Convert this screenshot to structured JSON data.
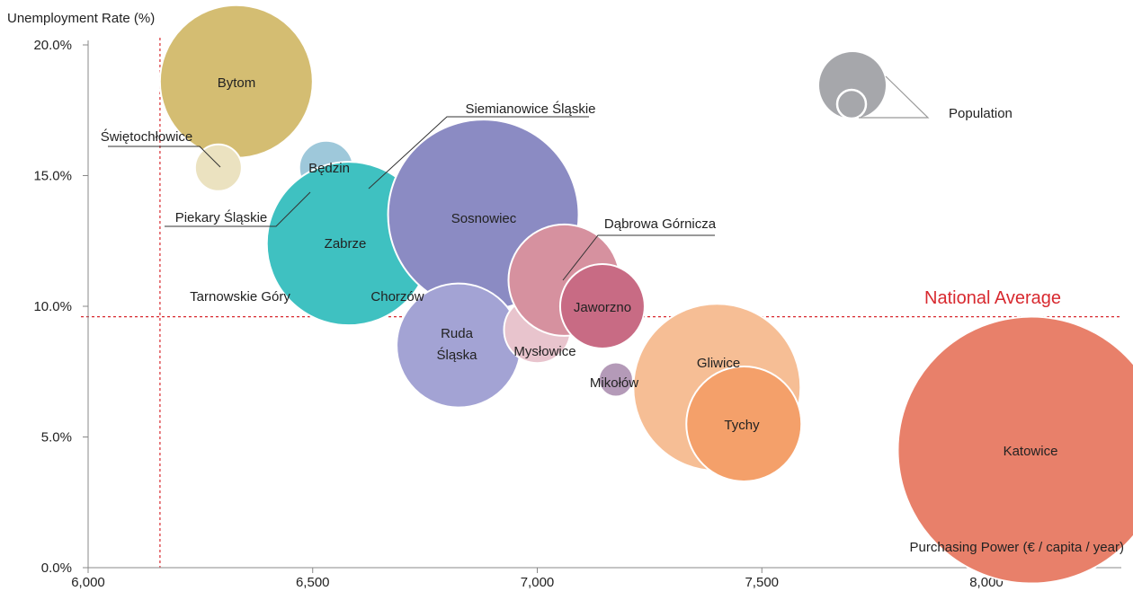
{
  "chart_data": {
    "type": "scatter",
    "subtype": "bubble",
    "xlabel": "Purchasing Power (€ / capita / year)",
    "ylabel": "Unemployment Rate (%)",
    "xlim": [
      6000,
      8300
    ],
    "ylim": [
      0,
      20
    ],
    "xticks": [
      "6,000",
      "6,500",
      "7,000",
      "7,500",
      "8,000"
    ],
    "yticks": [
      "0.0%",
      "5.0%",
      "10.0%",
      "15.0%",
      "20.0%"
    ],
    "legend": {
      "label": "Population",
      "color": "#a6a7ab",
      "placement": "top-right"
    },
    "reference_lines": {
      "label": "National Average",
      "color": "#d8292f",
      "x": 6160,
      "y": 9.6
    },
    "points": [
      {
        "name": "Bytom",
        "x": 6330,
        "y": 18.6,
        "size": 170,
        "color": "#d4bd72"
      },
      {
        "name": "Świętochłowice",
        "x": 6290,
        "y": 15.3,
        "size": 52,
        "color": "#ebe2c0"
      },
      {
        "name": "Siemianowice Śląskie",
        "x": 6600,
        "y": 14.1,
        "size": 68,
        "color": "#d3e3ed"
      },
      {
        "name": "Piekary Śląskie",
        "x": 6520,
        "y": 14.5,
        "size": 56,
        "color": "#3a8fab"
      },
      {
        "name": "Będzin",
        "x": 6530,
        "y": 15.3,
        "size": 60,
        "color": "#9ec8da"
      },
      {
        "name": "Chorzów",
        "x": 6610,
        "y": 11.1,
        "size": 82,
        "color": "#9bd7d5"
      },
      {
        "name": "Tarnowskie Góry",
        "x": 6550,
        "y": 11.0,
        "size": 70,
        "color": "#76cdcc"
      },
      {
        "name": "Zabrze",
        "x": 6580,
        "y": 12.4,
        "size": 182,
        "color": "#3fc1c1"
      },
      {
        "name": "Sosnowiec",
        "x": 6880,
        "y": 13.5,
        "size": 212,
        "color": "#8b8bc3"
      },
      {
        "name": "Ruda Śląska",
        "x": 6825,
        "y": 8.5,
        "size": 138,
        "color": "#a3a3d4"
      },
      {
        "name": "Mysłowice",
        "x": 7000,
        "y": 9.1,
        "size": 74,
        "color": "#e8c4cd"
      },
      {
        "name": "Dąbrowa Górnicza",
        "x": 7060,
        "y": 11.0,
        "size": 124,
        "color": "#d6919f"
      },
      {
        "name": "Jaworzno",
        "x": 7145,
        "y": 10.0,
        "size": 94,
        "color": "#c86b84"
      },
      {
        "name": "Mikołów",
        "x": 7175,
        "y": 7.2,
        "size": 38,
        "color": "#b49ab8"
      },
      {
        "name": "Gliwice",
        "x": 7400,
        "y": 6.9,
        "size": 186,
        "color": "#f6be95"
      },
      {
        "name": "Tychy",
        "x": 7460,
        "y": 5.5,
        "size": 128,
        "color": "#f4a06a"
      },
      {
        "name": "Katowice",
        "x": 8100,
        "y": 4.5,
        "size": 297,
        "color": "#e8806a"
      }
    ]
  }
}
